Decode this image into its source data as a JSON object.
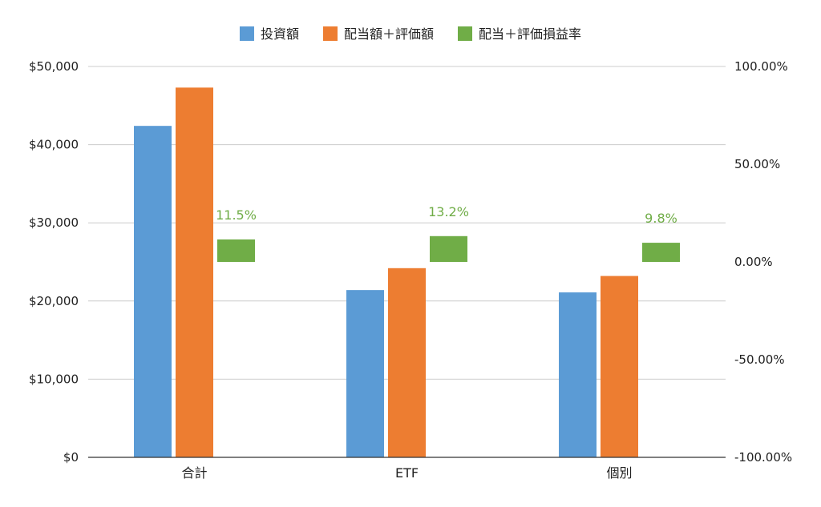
{
  "chart_data": {
    "type": "bar",
    "categories": [
      "合計",
      "ETF",
      "個別"
    ],
    "series": [
      {
        "name": "投資額",
        "axis": "left",
        "color": "#5B9BD5",
        "values": [
          42400,
          21400,
          21100
        ]
      },
      {
        "name": "配当額＋評価額",
        "axis": "left",
        "color": "#ED7D31",
        "values": [
          47300,
          24200,
          23200
        ]
      },
      {
        "name": "配当＋評価損益率",
        "axis": "right",
        "color": "#70AD47",
        "values": [
          0.115,
          0.132,
          0.098
        ],
        "labels": [
          "11.5%",
          "13.2%",
          "9.8%"
        ]
      }
    ],
    "y_left": {
      "min": 0,
      "max": 50000,
      "ticks": [
        "$0",
        "$10,000",
        "$20,000",
        "$30,000",
        "$40,000",
        "$50,000"
      ],
      "tick_values": [
        0,
        10000,
        20000,
        30000,
        40000,
        50000
      ]
    },
    "y_right": {
      "min": -1,
      "max": 1,
      "ticks": [
        "-100.00%",
        "-50.00%",
        "0.00%",
        "50.00%",
        "100.00%"
      ],
      "tick_values": [
        -1,
        -0.5,
        0,
        0.5,
        1
      ]
    },
    "grid": true,
    "legend": "top-center"
  }
}
